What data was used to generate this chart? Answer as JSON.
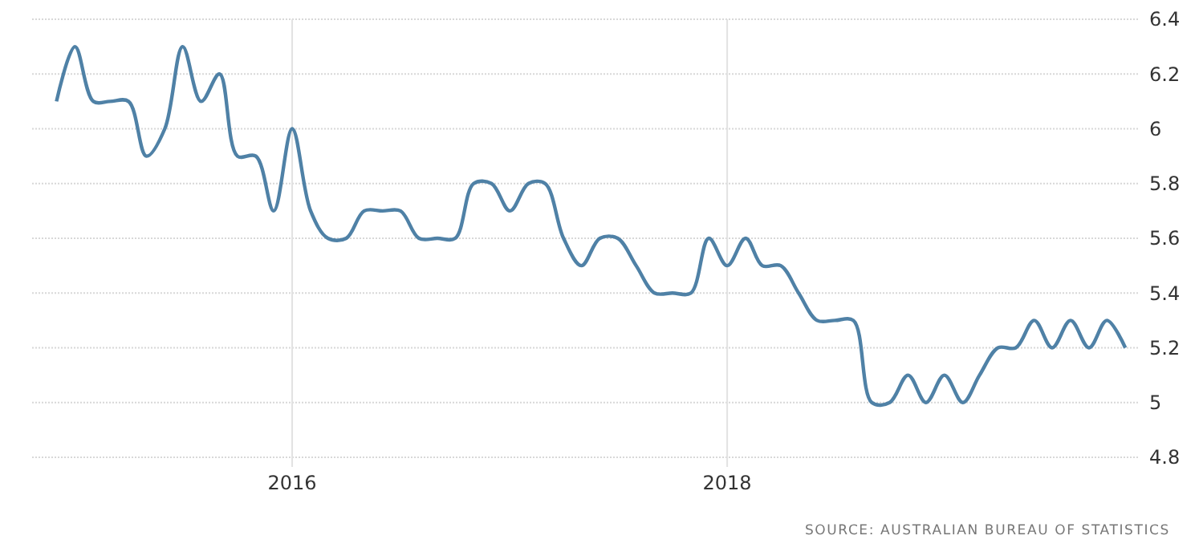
{
  "chart_data": {
    "type": "line",
    "annotations": [
      "SOURCE: AUSTRALIAN BUREAU OF STATISTICS"
    ],
    "x": [
      "2014-12",
      "2015-01",
      "2015-02",
      "2015-03",
      "2015-04",
      "2015-05",
      "2015-06",
      "2015-07",
      "2015-08",
      "2015-09",
      "2015-10",
      "2015-11",
      "2015-12",
      "2016-01",
      "2016-02",
      "2016-03",
      "2016-04",
      "2016-05",
      "2016-06",
      "2016-07",
      "2016-08",
      "2016-09",
      "2016-10",
      "2016-11",
      "2016-12",
      "2017-01",
      "2017-02",
      "2017-03",
      "2017-04",
      "2017-05",
      "2017-06",
      "2017-07",
      "2017-08",
      "2017-09",
      "2017-10",
      "2017-11",
      "2017-12",
      "2018-01",
      "2018-02",
      "2018-03",
      "2018-04",
      "2018-05",
      "2018-06",
      "2018-07",
      "2018-08",
      "2018-09",
      "2018-10",
      "2018-11",
      "2018-12",
      "2019-01",
      "2019-02",
      "2019-03",
      "2019-04",
      "2019-05",
      "2019-06",
      "2019-07",
      "2019-08",
      "2019-09",
      "2019-10",
      "2019-11"
    ],
    "series": [
      {
        "color": "#4f81a6",
        "values": [
          6.1,
          6.3,
          6.1,
          6.1,
          6.1,
          5.9,
          6.0,
          6.3,
          6.1,
          6.2,
          5.9,
          5.9,
          5.7,
          6.0,
          5.7,
          5.6,
          5.6,
          5.7,
          5.7,
          5.7,
          5.6,
          5.6,
          5.6,
          5.8,
          5.8,
          5.7,
          5.8,
          5.8,
          5.6,
          5.5,
          5.6,
          5.6,
          5.5,
          5.4,
          5.4,
          5.4,
          5.6,
          5.5,
          5.6,
          5.5,
          5.5,
          5.4,
          5.3,
          5.3,
          5.3,
          5.0,
          5.0,
          5.1,
          5.0,
          5.1,
          5.0,
          5.1,
          5.2,
          5.2,
          5.3,
          5.2,
          5.3,
          5.2,
          5.3,
          5.2
        ]
      }
    ],
    "xlim": [
      "2014-10-21",
      "2019-11-25"
    ],
    "xticks": [
      {
        "value": "2016-01",
        "label": "2016"
      },
      {
        "value": "2018-01",
        "label": "2018"
      }
    ],
    "ylim": [
      4.8,
      6.4
    ],
    "yticks": [
      4.8,
      5,
      5.2,
      5.4,
      5.6,
      5.8,
      6,
      6.2,
      6.4
    ],
    "grid": true,
    "line_style": "solid",
    "marker": "none"
  }
}
